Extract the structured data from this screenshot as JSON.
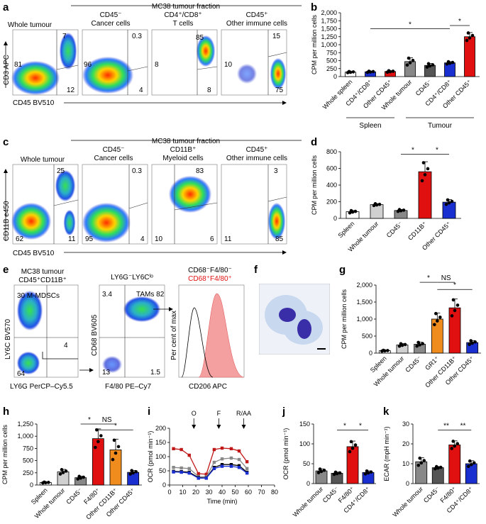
{
  "panel_letters": [
    "a",
    "b",
    "c",
    "d",
    "e",
    "f",
    "g",
    "h",
    "i",
    "j",
    "k"
  ],
  "colors": {
    "white": "#ffffff",
    "lightgray": "#d0d0d0",
    "gray": "#888888",
    "darkgray": "#555555",
    "blue": "#1a2fd0",
    "red": "#e01010",
    "orange": "#f08c1e",
    "black": "#000000"
  },
  "a": {
    "title": "MC38 tumour fraction",
    "ylabel": "CD3 APC",
    "xlabel": "CD45 BV510",
    "plots": [
      {
        "name": "Whole tumour",
        "q": [
          "7",
          "81",
          "12"
        ]
      },
      {
        "name": "CD45⁻",
        "sub": "Cancer cells",
        "q": [
          "0.3",
          "96",
          "4"
        ]
      },
      {
        "name": "CD4⁺/CD8⁺",
        "sub": "T cells",
        "q": [
          "85",
          "8",
          "8"
        ]
      },
      {
        "name": "CD45⁺",
        "sub": "Other immune cells",
        "q": [
          "15",
          "10",
          "75"
        ]
      }
    ]
  },
  "c": {
    "title": "MC38 tumour fraction",
    "ylabel": "CD11B e450",
    "xlabel": "CD45 BV510",
    "plots": [
      {
        "name": "Whole tumour",
        "q": [
          "25",
          "62",
          "11"
        ]
      },
      {
        "name": "CD45⁻",
        "sub": "Cancer cells",
        "q": [
          "0.3",
          "95",
          "4"
        ]
      },
      {
        "name": "CD11B⁺",
        "sub": "Myeloid cells",
        "q": [
          "83",
          "10",
          "6"
        ]
      },
      {
        "name": "CD45⁺",
        "sub": "Other immune cells",
        "q": [
          "3",
          "11",
          "85"
        ]
      }
    ]
  },
  "e": {
    "p1": {
      "title1": "MC38 tumour",
      "title2": "CD45⁺CD11B⁺",
      "ylabel": "LY6C BV570",
      "xlabel": "LY6G PerCP–Cy5.5",
      "q": [
        "30 M-MDSCs",
        "4",
        "64"
      ]
    },
    "p2": {
      "title": "LY6G⁻LY6Cˡᵒ",
      "ylabel": "CD68 BV605",
      "xlabel": "F4/80 PE–Cy7",
      "q": [
        "3.4",
        "TAMs 82",
        "13",
        "1.5"
      ]
    },
    "p3": {
      "legend1": "CD68⁻F4/80⁻",
      "legend2": "CD68⁺F4/80⁺",
      "ylabel": "Per cent of max",
      "xlabel": "CD206 APC"
    }
  },
  "chart_data": [
    {
      "panel": "b",
      "type": "bar",
      "ylabel": "CPM per million cells",
      "yticks": [
        "0",
        "250",
        "500",
        "750",
        "1,000",
        "1,250",
        "1,500",
        "1,750",
        "2,000"
      ],
      "ylim": [
        0,
        2000
      ],
      "categories": [
        "Whole spleen",
        "CD4⁺/CD8⁺",
        "Other CD45⁺",
        "Whole tumour",
        "CD45⁻",
        "CD4⁺/CD8⁺",
        "Other CD45⁺"
      ],
      "values": [
        140,
        150,
        160,
        470,
        350,
        430,
        1250
      ],
      "errors": [
        20,
        20,
        25,
        120,
        60,
        40,
        130
      ],
      "group_labels": [
        "Spleen",
        "Tumour"
      ],
      "significance": [
        "*",
        "*"
      ]
    },
    {
      "panel": "d",
      "type": "bar",
      "ylabel": "CPM per million cells",
      "yticks": [
        "0",
        "200",
        "400",
        "600",
        "800"
      ],
      "ylim": [
        0,
        800
      ],
      "categories": [
        "Spleen",
        "Whole tumour",
        "CD45⁻",
        "CD11B⁺",
        "Other CD45⁺"
      ],
      "values": [
        80,
        165,
        95,
        560,
        195
      ],
      "errors": [
        15,
        12,
        12,
        120,
        30
      ],
      "significance": [
        "*",
        "*"
      ]
    },
    {
      "panel": "g",
      "type": "bar",
      "ylabel": "CPM per million cells",
      "yticks": [
        "0",
        "500",
        "1,000",
        "1,500",
        "2,000"
      ],
      "ylim": [
        0,
        2000
      ],
      "categories": [
        "Spleen",
        "Whole tumour",
        "CD45⁻",
        "GR1⁺",
        "Other CD11B⁺",
        "Other CD45⁺"
      ],
      "values": [
        70,
        240,
        260,
        1000,
        1330,
        310
      ],
      "errors": [
        15,
        40,
        60,
        180,
        260,
        60
      ],
      "significance": [
        "*",
        "NS",
        "*"
      ]
    },
    {
      "panel": "h",
      "type": "bar",
      "ylabel": "CPM per million cells",
      "yticks": [
        "0",
        "250",
        "500",
        "750",
        "1,000",
        "1,250"
      ],
      "ylim": [
        0,
        1250
      ],
      "categories": [
        "Spleen",
        "Whole tumour",
        "CD45⁻",
        "F4/80⁺",
        "Other CD11B⁺",
        "Other CD45⁺"
      ],
      "values": [
        50,
        270,
        150,
        950,
        720,
        260
      ],
      "errors": [
        10,
        50,
        30,
        200,
        220,
        40
      ],
      "significance": [
        "*",
        "NS",
        "*"
      ]
    },
    {
      "panel": "i",
      "type": "line",
      "ylabel": "OCR (pmol min⁻¹)",
      "xlabel": "Time (min)",
      "xticks": [
        "0",
        "10",
        "20",
        "30",
        "40",
        "50",
        "60",
        "70",
        "80"
      ],
      "xlim": [
        0,
        80
      ],
      "yticks": [
        "0",
        "50",
        "100",
        "150",
        "200"
      ],
      "ylim": [
        0,
        200
      ],
      "injections": [
        "O",
        "F",
        "R/AA"
      ],
      "x": [
        3,
        9,
        15,
        22,
        28,
        34,
        40,
        47,
        53,
        59
      ],
      "series": [
        {
          "color": "#c01818",
          "values": [
            128,
            125,
            105,
            40,
            38,
            125,
            130,
            128,
            120,
            82
          ]
        },
        {
          "color": "#888888",
          "values": [
            62,
            60,
            58,
            30,
            29,
            80,
            92,
            95,
            90,
            58
          ]
        },
        {
          "color": "#000000",
          "values": [
            48,
            47,
            45,
            26,
            25,
            62,
            72,
            72,
            68,
            45
          ]
        },
        {
          "color": "#1a2fd0",
          "values": [
            46,
            45,
            42,
            24,
            24,
            58,
            66,
            66,
            62,
            42
          ]
        }
      ]
    },
    {
      "panel": "j",
      "type": "bar",
      "ylabel": "OCR (pmol min⁻¹)",
      "yticks": [
        "0",
        "50",
        "100",
        "150"
      ],
      "ylim": [
        0,
        150
      ],
      "categories": [
        "Whole tumour",
        "CD45⁻",
        "F4/80⁺",
        "CD4⁺/CD8⁺"
      ],
      "values": [
        32,
        26,
        93,
        28
      ],
      "errors": [
        5,
        3,
        14,
        4
      ],
      "significance": [
        "*",
        "*"
      ]
    },
    {
      "panel": "k",
      "type": "bar",
      "ylabel": "ECAR (mpH min⁻¹)",
      "yticks": [
        "0",
        "10",
        "20",
        "30"
      ],
      "ylim": [
        0,
        30
      ],
      "categories": [
        "Whole tumour",
        "CD45⁻",
        "F4/80⁺",
        "CD4⁺/CD8⁺"
      ],
      "values": [
        11,
        8,
        19.5,
        10
      ],
      "errors": [
        2,
        0.6,
        2,
        1.5
      ],
      "significance": [
        "**",
        "**"
      ]
    }
  ]
}
